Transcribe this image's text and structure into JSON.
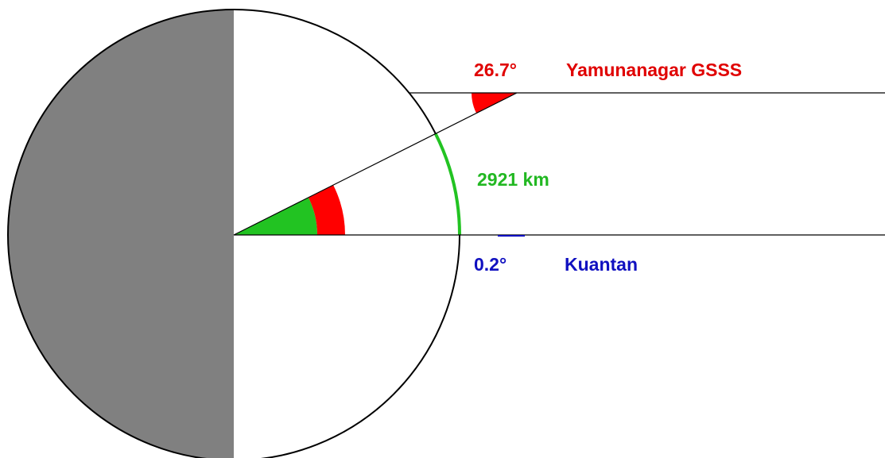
{
  "labels": {
    "top_angle": "26.7°",
    "top_station": "Yamunanagar GSSS",
    "distance": "2921 km",
    "bottom_angle": "0.2°",
    "bottom_station": "Kuantan"
  }
}
